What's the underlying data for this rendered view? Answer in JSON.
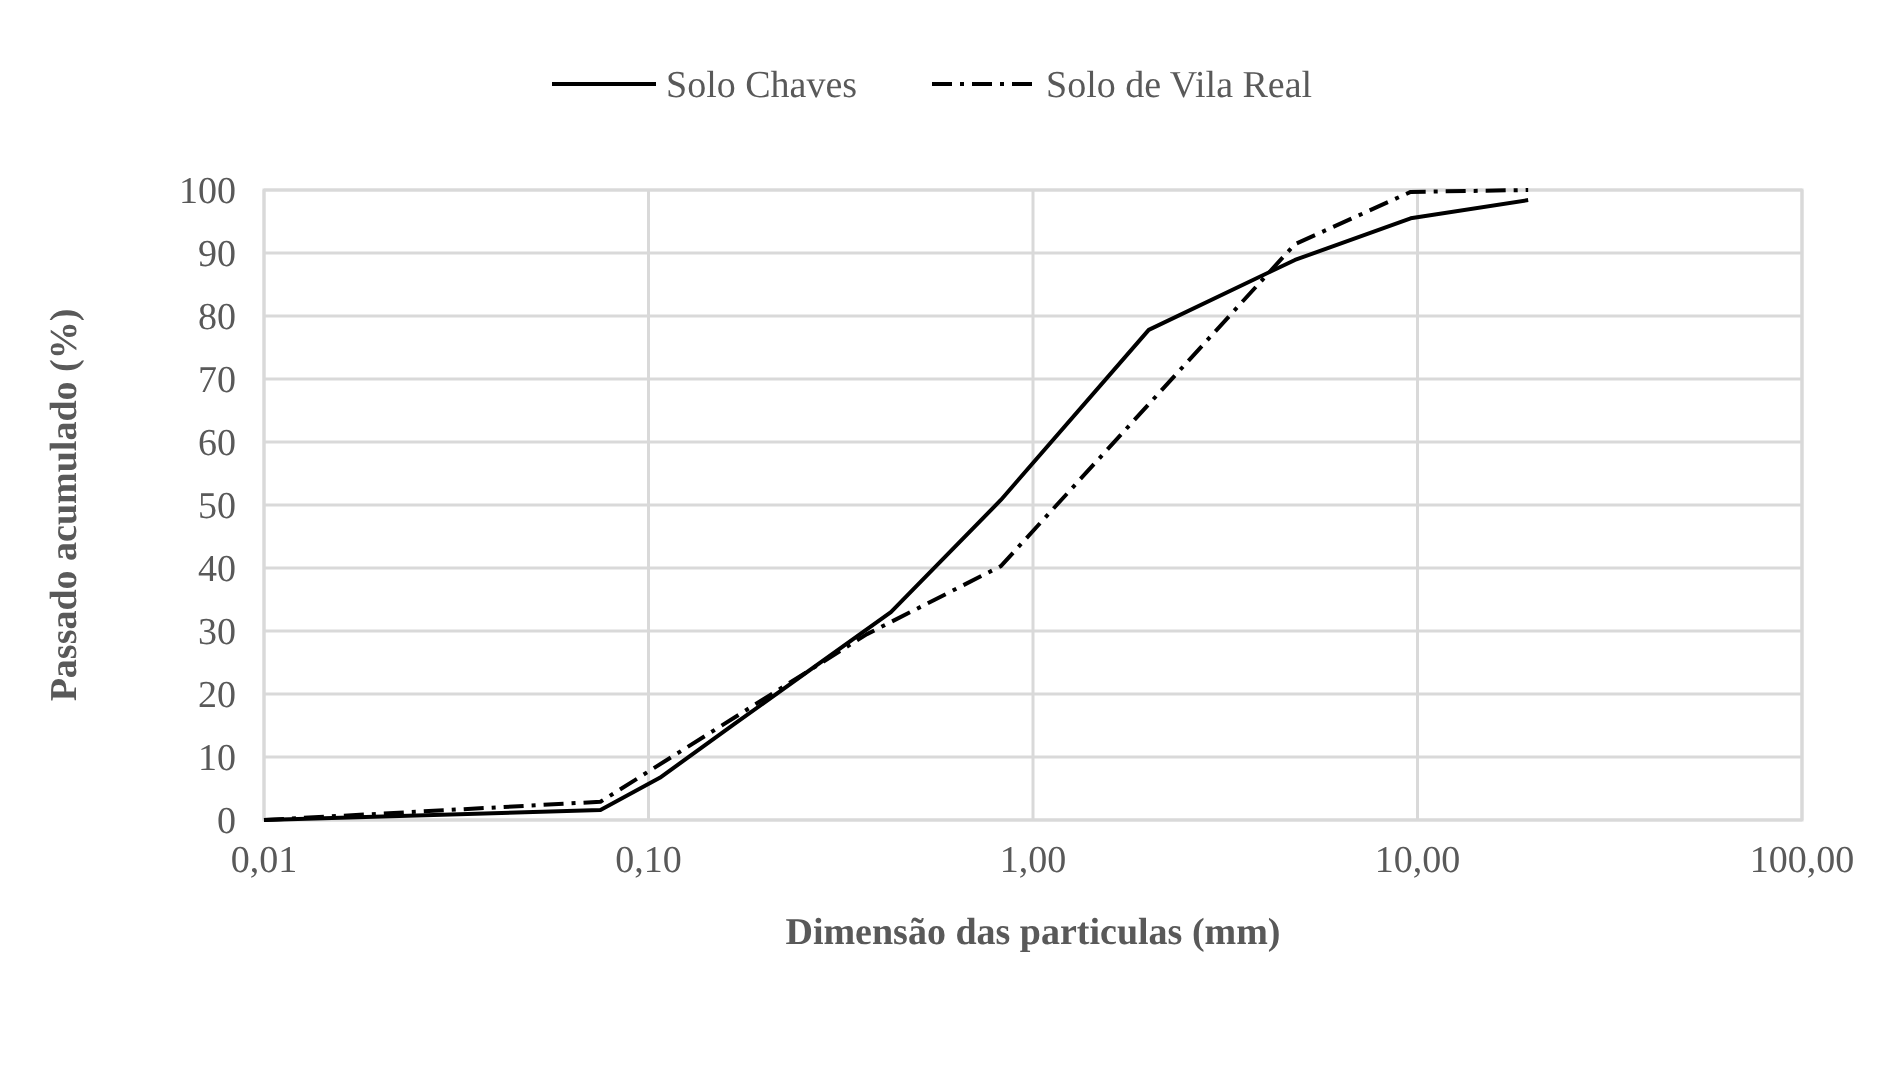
{
  "chart_data": {
    "type": "line",
    "xlabel": "Dimensão das particulas (mm)",
    "ylabel": "Passado acumulado (%)",
    "log": "x",
    "xlim": [
      0.01,
      100
    ],
    "xticks": [
      {
        "value": 0.01,
        "label": "0,01"
      },
      {
        "value": 0.1,
        "label": "0,10"
      },
      {
        "value": 1,
        "label": "1,00"
      },
      {
        "value": 10,
        "label": "10,00"
      },
      {
        "value": 100,
        "label": "100,00"
      }
    ],
    "ylim": [
      0,
      100
    ],
    "yticks": [
      0,
      10,
      20,
      30,
      40,
      50,
      60,
      70,
      80,
      90,
      100
    ],
    "grid": true,
    "legend": "top",
    "series": [
      {
        "name": "Solo Chaves",
        "color": "#000000",
        "line_style": "solid",
        "x": [
          0.01,
          0.075,
          0.107,
          0.167,
          0.427,
          0.825,
          2,
          4.8,
          9.6,
          19.4
        ],
        "values": [
          0,
          1.6,
          6.7,
          15.2,
          33,
          50.8,
          77.8,
          88.9,
          95.5,
          98.4
        ]
      },
      {
        "name": "Solo de Vila Real",
        "color": "#000000",
        "line_style": "dashdot",
        "x": [
          0.01,
          0.075,
          0.37,
          0.825,
          4.8,
          9.6,
          19.4
        ],
        "values": [
          0,
          2.9,
          29.5,
          40.3,
          91.4,
          99.7,
          100
        ]
      }
    ]
  }
}
